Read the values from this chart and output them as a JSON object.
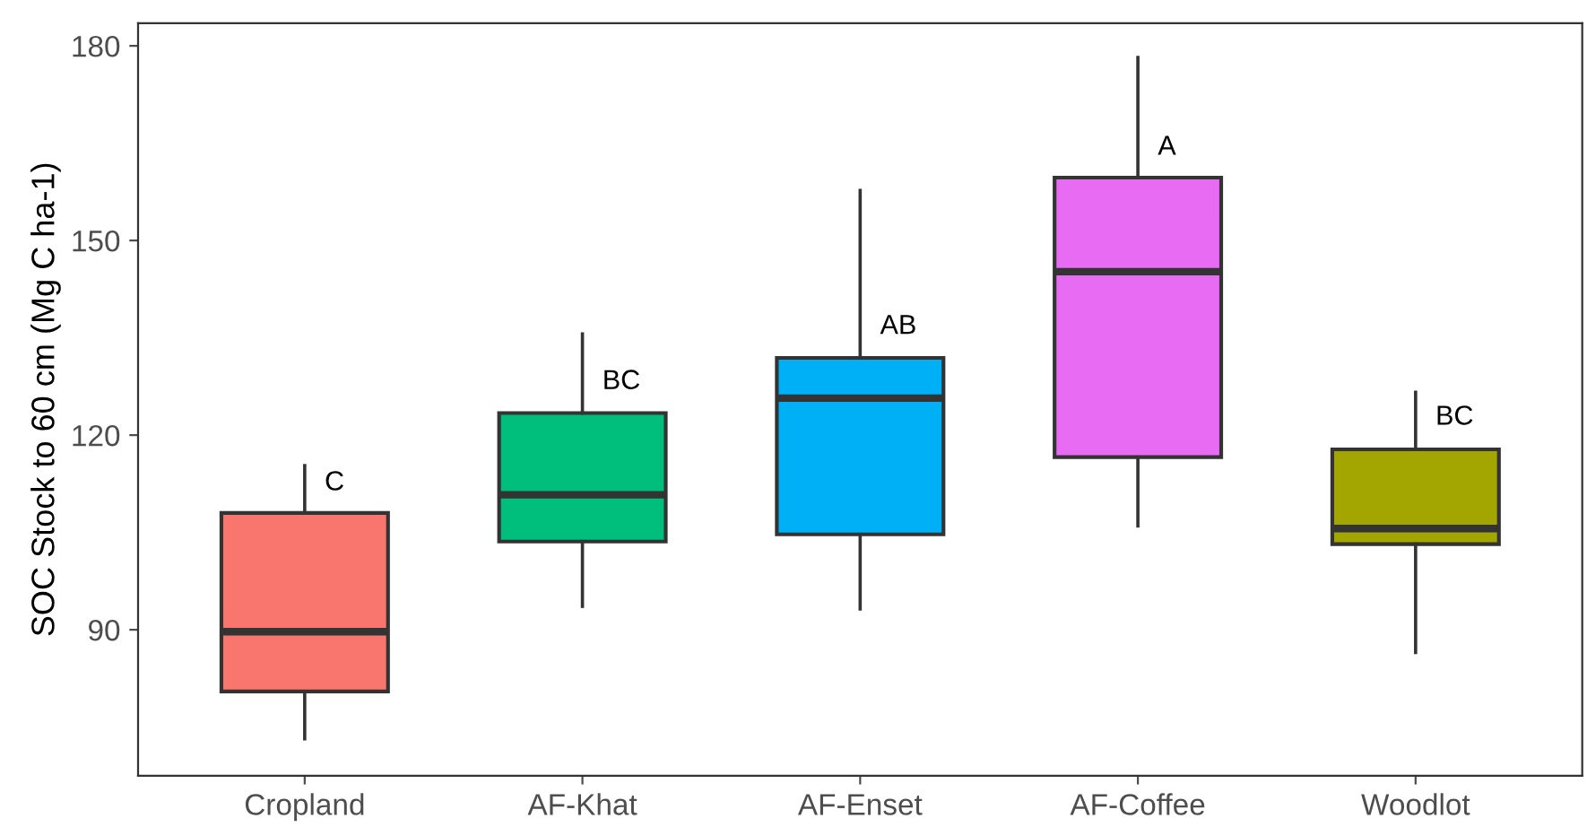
{
  "chart_data": {
    "type": "box",
    "ylabel": "SOC Stock to 60 cm (Mg C ha-1)",
    "categories": [
      "Cropland",
      "AF-Khat",
      "AF-Enset",
      "AF-Coffee",
      "Woodlot"
    ],
    "colors": [
      "#f8766d",
      "#00bf7d",
      "#00b0f6",
      "#e76bf3",
      "#a3a500"
    ],
    "boxes": [
      {
        "low": 73.2,
        "q1": 80.5,
        "median": 89.7,
        "q3": 108.0,
        "high": 115.3
      },
      {
        "low": 93.6,
        "q1": 103.6,
        "median": 110.8,
        "q3": 123.4,
        "high": 135.6
      },
      {
        "low": 93.2,
        "q1": 104.7,
        "median": 125.7,
        "q3": 131.9,
        "high": 157.7
      },
      {
        "low": 106.0,
        "q1": 116.6,
        "median": 145.2,
        "q3": 159.7,
        "high": 178.2
      },
      {
        "low": 86.5,
        "q1": 103.2,
        "median": 105.6,
        "q3": 117.8,
        "high": 126.6
      }
    ],
    "annotations": [
      {
        "text": "C",
        "x": "Cropland",
        "y": 112.6
      },
      {
        "text": "BC",
        "x": "AF-Khat",
        "y": 128.2
      },
      {
        "text": "AB",
        "x": "AF-Enset",
        "y": 136.7
      },
      {
        "text": "A",
        "x": "AF-Coffee",
        "y": 164.3
      },
      {
        "text": "BC",
        "x": "Woodlot",
        "y": 122.7
      }
    ],
    "ylim": [
      67.5,
      183.5
    ],
    "yticks": [
      90,
      120,
      150,
      180
    ],
    "grid": false,
    "legend": false
  }
}
